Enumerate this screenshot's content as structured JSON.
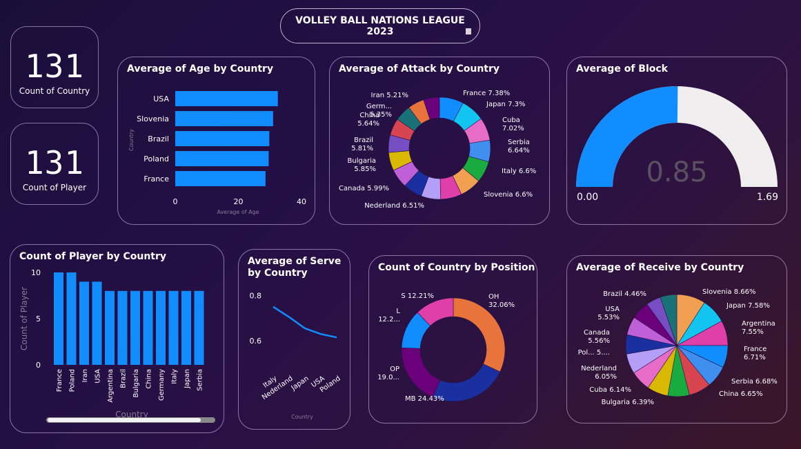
{
  "header": {
    "title": "VOLLEY BALL NATIONS LEAGUE 2023"
  },
  "kpis": [
    {
      "value": "131",
      "label": "Count of Country"
    },
    {
      "value": "131",
      "label": "Count of Player"
    }
  ],
  "colors": {
    "bar": "#118dff",
    "gauge_fill": "#118dff",
    "gauge_bg": "#f0eeee",
    "text_muted": "#8a7a96"
  },
  "age_chart": {
    "title": "Average of Age by Country",
    "chart_data": {
      "type": "bar",
      "orientation": "horizontal",
      "categories": [
        "USA",
        "Slovenia",
        "Brazil",
        "Poland",
        "France"
      ],
      "values": [
        32.5,
        31,
        29.8,
        29.6,
        28.6
      ],
      "xlim": [
        0,
        40
      ],
      "xticks": [
        "0",
        "20",
        "40"
      ],
      "xlabel": "Average of Age",
      "ylabel": "Country"
    }
  },
  "attack_chart": {
    "title": "Average of Attack by Country",
    "chart_data": {
      "type": "pie",
      "donut": true,
      "slices": [
        {
          "label": "France 7.38%",
          "value": 7.38,
          "color": "#118dff"
        },
        {
          "label": "Japan 7.3%",
          "value": 7.3,
          "color": "#12c4f0"
        },
        {
          "label": "Cuba 7.02%",
          "value": 7.02,
          "color": "#e66cc8"
        },
        {
          "label": "Serbia 6.64%",
          "value": 6.64,
          "color": "#3f8ff0"
        },
        {
          "label": "Italy 6.6%",
          "value": 6.6,
          "color": "#1aab40"
        },
        {
          "label": "Slovenia 6.6%",
          "value": 6.6,
          "color": "#f0a050"
        },
        {
          "label": "Nederland 6.51%",
          "value": 6.51,
          "color": "#de3fa8"
        },
        {
          "label": "Canada 5.99%",
          "value": 5.99,
          "color": "#b49ff8"
        },
        {
          "label": "Bulgaria 5.85%",
          "value": 5.85,
          "color": "#1a2fa0"
        },
        {
          "label": "Brazil 5.81%",
          "value": 5.81,
          "color": "#c060d8"
        },
        {
          "label": "China 5.64%",
          "value": 5.64,
          "color": "#d8b800"
        },
        {
          "label": "Germ... 5.35%",
          "value": 5.35,
          "color": "#744ec2"
        },
        {
          "label": "Iran 5.21%",
          "value": 5.21,
          "color": "#d64550"
        },
        {
          "label": "",
          "value": 5.0,
          "color": "#197278"
        },
        {
          "label": "",
          "value": 5.0,
          "color": "#e8743b"
        },
        {
          "label": "",
          "value": 4.9,
          "color": "#6b007b"
        }
      ]
    }
  },
  "block_chart": {
    "title": "Average of Block",
    "chart_data": {
      "type": "gauge",
      "value": 0.85,
      "min": 0.0,
      "max": 1.69,
      "value_label": "0.85",
      "min_label": "0.00",
      "max_label": "1.69"
    }
  },
  "player_chart": {
    "title": "Count of Player by Country",
    "chart_data": {
      "type": "bar",
      "categories": [
        "France",
        "Poland",
        "Iran",
        "USA",
        "Argentina",
        "Brazil",
        "Bulgaria",
        "China",
        "Germany",
        "Italy",
        "Japan",
        "Serbia"
      ],
      "values": [
        10,
        10,
        9,
        9,
        8,
        8,
        8,
        8,
        8,
        8,
        8,
        8
      ],
      "ylim": [
        0,
        10
      ],
      "yticks": [
        "0",
        "5",
        "10"
      ],
      "xlabel": "Country",
      "ylabel": "Count of Player"
    }
  },
  "serve_chart": {
    "title": "Average of Serve by Country",
    "chart_data": {
      "type": "line",
      "categories": [
        "Italy",
        "Nederland",
        "Japan",
        "USA",
        "Poland"
      ],
      "values": [
        0.75,
        0.705,
        0.655,
        0.63,
        0.615
      ],
      "ylim": [
        0.5,
        0.85
      ],
      "yticks": [
        "0.8",
        "0.6"
      ],
      "xlabel": "Country"
    }
  },
  "position_chart": {
    "title": "Count of Country by Position",
    "chart_data": {
      "type": "pie",
      "donut": true,
      "slices": [
        {
          "label": "OH 32.06%",
          "value": 32.06,
          "color": "#e8743b"
        },
        {
          "label": "MB 24.43%",
          "value": 24.43,
          "color": "#1a2fa0"
        },
        {
          "label": "OP 19.0...",
          "value": 19.08,
          "color": "#6b007b"
        },
        {
          "label": "L 12.2...",
          "value": 12.21,
          "color": "#118dff"
        },
        {
          "label": "S 12.21%",
          "value": 12.21,
          "color": "#de3fa8"
        }
      ]
    }
  },
  "receive_chart": {
    "title": "Average of Receive by Country",
    "chart_data": {
      "type": "pie",
      "slices": [
        {
          "label": "Slovenia 8.66%",
          "value": 8.66,
          "color": "#f0a050"
        },
        {
          "label": "Japan 7.58%",
          "value": 7.58,
          "color": "#12c4f0"
        },
        {
          "label": "Argentina 7.55%",
          "value": 7.55,
          "color": "#de3fa8"
        },
        {
          "label": "France 6.71%",
          "value": 6.71,
          "color": "#118dff"
        },
        {
          "label": "Serbia 6.68%",
          "value": 6.68,
          "color": "#3f8ff0"
        },
        {
          "label": "China 6.65%",
          "value": 6.65,
          "color": "#d64550"
        },
        {
          "label": "",
          "value": 6.5,
          "color": "#1aab40"
        },
        {
          "label": "Bulgaria 6.39%",
          "value": 6.39,
          "color": "#d8b800"
        },
        {
          "label": "Cuba 6.14%",
          "value": 6.14,
          "color": "#e66cc8"
        },
        {
          "label": "Nederland 6.05%",
          "value": 6.05,
          "color": "#b49ff8"
        },
        {
          "label": "Pol... 5....",
          "value": 5.8,
          "color": "#1a2fa0"
        },
        {
          "label": "Canada 5.56%",
          "value": 5.56,
          "color": "#c060d8"
        },
        {
          "label": "USA 5.53%",
          "value": 5.53,
          "color": "#6b007b"
        },
        {
          "label": "Brazil 4.46%",
          "value": 4.46,
          "color": "#744ec2"
        },
        {
          "label": "",
          "value": 5.0,
          "color": "#197278"
        }
      ]
    }
  }
}
